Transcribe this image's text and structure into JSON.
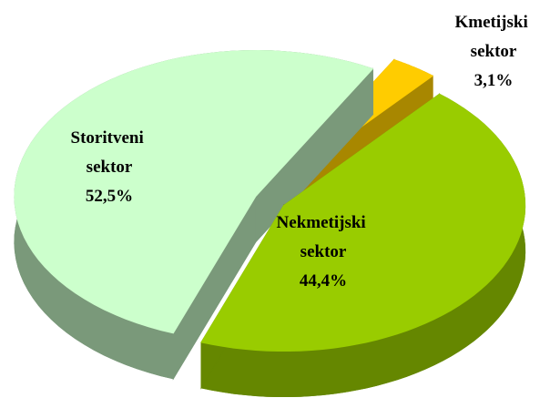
{
  "chart_data": {
    "type": "pie",
    "categories": [
      "Kmetijski sektor",
      "Nekmetijski sektor",
      "Storitveni sektor"
    ],
    "values": [
      3.1,
      44.4,
      52.5
    ],
    "value_labels": [
      "3,1%",
      "44,4%",
      "52,5%"
    ],
    "colors": [
      "#ffcc00",
      "#99cc00",
      "#ccffcc"
    ]
  }
}
